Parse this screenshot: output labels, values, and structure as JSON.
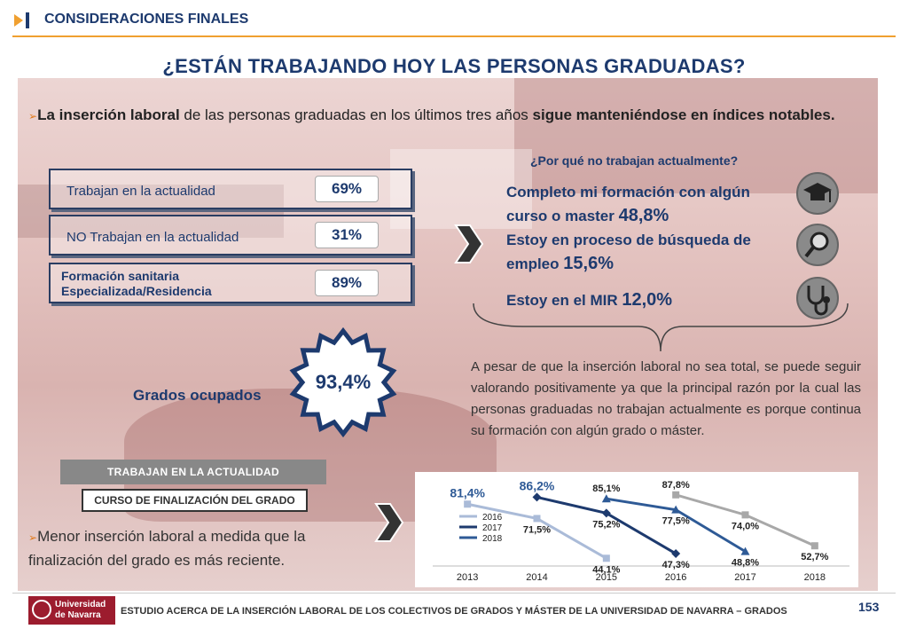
{
  "header": {
    "section": "CONSIDERACIONES FINALES"
  },
  "title": "¿ESTÁN TRABAJANDO HOY LAS PERSONAS GRADUADAS?",
  "intro": {
    "bold1": "La inserción laboral",
    "text1": " de las personas graduadas en los últimos tres años ",
    "bold2": "sigue manteniéndose en índices notables."
  },
  "stats": [
    {
      "label": "Trabajan en la actualidad",
      "value": "69%"
    },
    {
      "label": "NO Trabajan en la actualidad",
      "value": "31%"
    },
    {
      "label": "Formación sanitaria Especializada/Residencia",
      "value": "89%"
    }
  ],
  "why": {
    "question": "¿Por qué no trabajan actualmente?",
    "reasons": [
      {
        "text": "Completo mi formación con algún curso o master",
        "pct": "48,8%",
        "icon": "graduation-cap-icon"
      },
      {
        "text": "Estoy en proceso de búsqueda de empleo",
        "pct": "15,6%",
        "icon": "magnifier-icon"
      },
      {
        "text": "Estoy en el MIR",
        "pct": "12,0%",
        "icon": "stethoscope-icon"
      }
    ]
  },
  "ocupados": {
    "label": "Grados ocupados",
    "value": "93,4%"
  },
  "paragraph": "A pesar de que la inserción laboral no sea total, se puede seguir valorando positivamente ya que la principal razón por la cual las personas graduadas no trabajan actualmente es porque continua su formación con algún grado o máster.",
  "banners": {
    "b1": "TRABAJAN EN LA ACTUALIDAD",
    "b2": "CURSO DE FINALIZACIÓN DEL GRADO"
  },
  "conclusion": "Menor inserción laboral a medida que la finalización del grado es más reciente.",
  "chart_data": {
    "type": "line",
    "categories": [
      "2013",
      "2014",
      "2015",
      "2016",
      "2017",
      "2018"
    ],
    "series": [
      {
        "name": "2016",
        "color": "#aabbd8",
        "values": [
          81.4,
          71.5,
          44.1,
          null,
          null,
          null
        ],
        "labels": [
          "81,4%",
          "71,5%",
          "44,1%"
        ]
      },
      {
        "name": "2017",
        "color": "#1d3a6e",
        "values": [
          null,
          86.2,
          75.2,
          47.3,
          null,
          null
        ],
        "labels": [
          "86,2%",
          "75,2%",
          "47,3%"
        ]
      },
      {
        "name": "2018",
        "color": "#2e5a96",
        "values": [
          null,
          null,
          85.1,
          77.5,
          48.8,
          null
        ],
        "labels": [
          "85,1%",
          "77,5%",
          "48,8%"
        ]
      },
      {
        "name": "",
        "color": "#a8a8a8",
        "values": [
          null,
          null,
          null,
          87.8,
          74.0,
          52.7
        ],
        "labels": [
          "87,8%",
          "74,0%",
          "52,7%"
        ]
      }
    ],
    "ylim": [
      40,
      95
    ]
  },
  "footer": {
    "university": "Universidad de Navarra",
    "text": "ESTUDIO ACERCA DE LA INSERCIÓN LABORAL DE LOS COLECTIVOS DE GRADOS Y MÁSTER DE LA UNIVERSIDAD DE NAVARRA – GRADOS",
    "page": "153"
  }
}
